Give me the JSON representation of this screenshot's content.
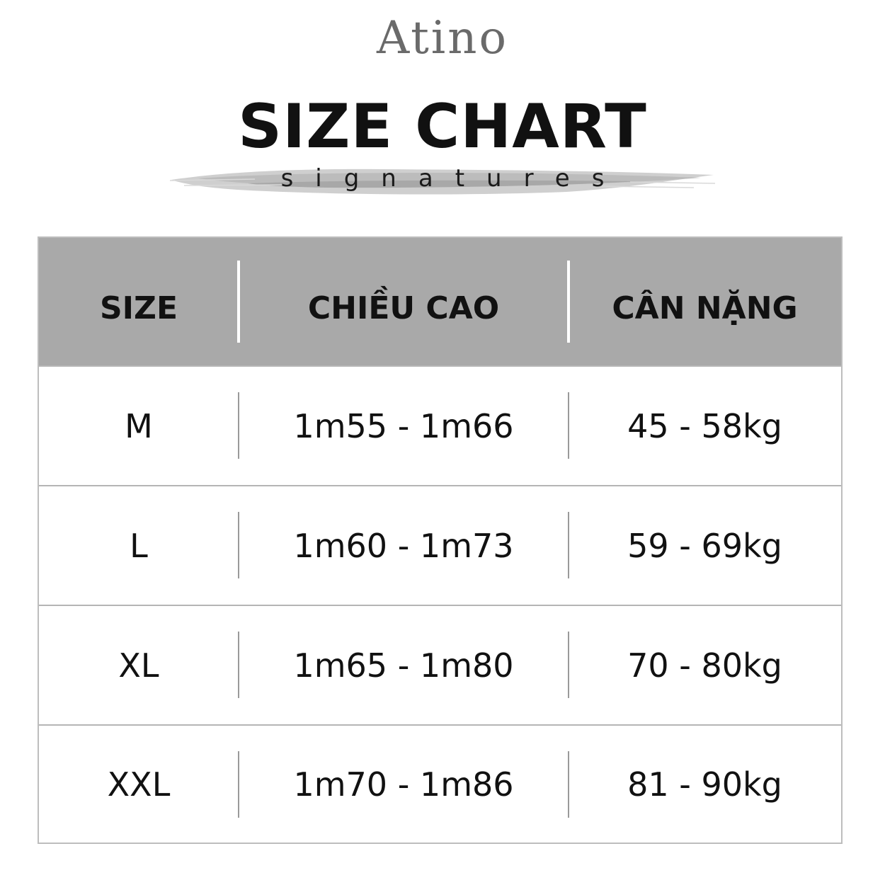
{
  "brand": {
    "name": "Atino"
  },
  "header": {
    "title": "SIZE CHART",
    "subtitle": "signatures"
  },
  "table": {
    "columns": [
      "SIZE",
      "CHIỀU CAO",
      "CÂN NẶNG"
    ],
    "rows": [
      {
        "size": "M",
        "height": "1m55 - 1m66",
        "weight": "45 - 58kg"
      },
      {
        "size": "L",
        "height": "1m60 - 1m73",
        "weight": "59 - 69kg"
      },
      {
        "size": "XL",
        "height": "1m65 - 1m80",
        "weight": "70 - 80kg"
      },
      {
        "size": "XXL",
        "height": "1m70 - 1m86",
        "weight": "81 - 90kg"
      }
    ]
  },
  "colors": {
    "header_background": "#a9a9a9",
    "border": "#bdbdbd",
    "text": "#111111",
    "brand_text": "#6a6a6a"
  }
}
